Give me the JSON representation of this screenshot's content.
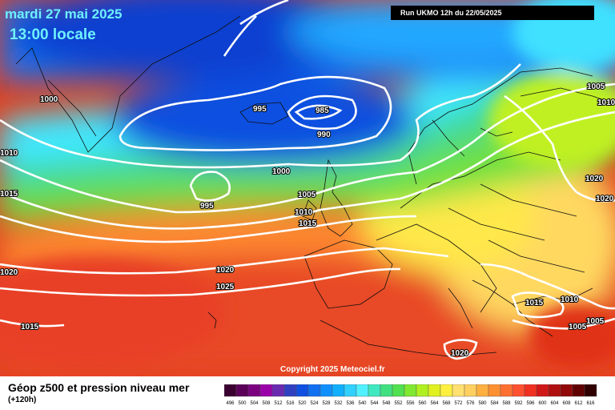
{
  "header": {
    "date": "mardi 27 mai 2025",
    "local_time": "13:00 locale",
    "run_info": "Run UKMO 12h du 22/05/2025"
  },
  "map": {
    "copyright": "Copyright 2025 Meteociel.fr",
    "isobar_labels": [
      "1000",
      "995",
      "985",
      "990",
      "1000",
      "1005",
      "1005",
      "1010",
      "1015",
      "1015",
      "995",
      "1020",
      "1025",
      "1020",
      "1015",
      "1020",
      "1020",
      "1015",
      "1010",
      "1005",
      "1005",
      "1020",
      "1010",
      "1010"
    ]
  },
  "legend": {
    "title": "Géop z500 et pression niveau mer",
    "subtitle": "(+120h)",
    "ticks": [
      "496",
      "500",
      "504",
      "508",
      "512",
      "516",
      "520",
      "524",
      "528",
      "532",
      "536",
      "540",
      "544",
      "548",
      "552",
      "556",
      "560",
      "564",
      "568",
      "572",
      "576",
      "580",
      "584",
      "588",
      "592",
      "596",
      "600",
      "604",
      "608",
      "612",
      "616"
    ],
    "colors": [
      "#3a0030",
      "#5a0058",
      "#7a0080",
      "#9a00a8",
      "#6a2ab0",
      "#3040c0",
      "#1050e0",
      "#1070f0",
      "#1090ff",
      "#10b0ff",
      "#30d0ff",
      "#50f0ff",
      "#40e8c0",
      "#40e080",
      "#50e050",
      "#80e830",
      "#b0f020",
      "#e0f020",
      "#fff040",
      "#ffe070",
      "#ffd060",
      "#ffb040",
      "#ff9030",
      "#ff7030",
      "#ff5030",
      "#f03020",
      "#d01818",
      "#b01010",
      "#900808",
      "#600000",
      "#300000"
    ]
  }
}
